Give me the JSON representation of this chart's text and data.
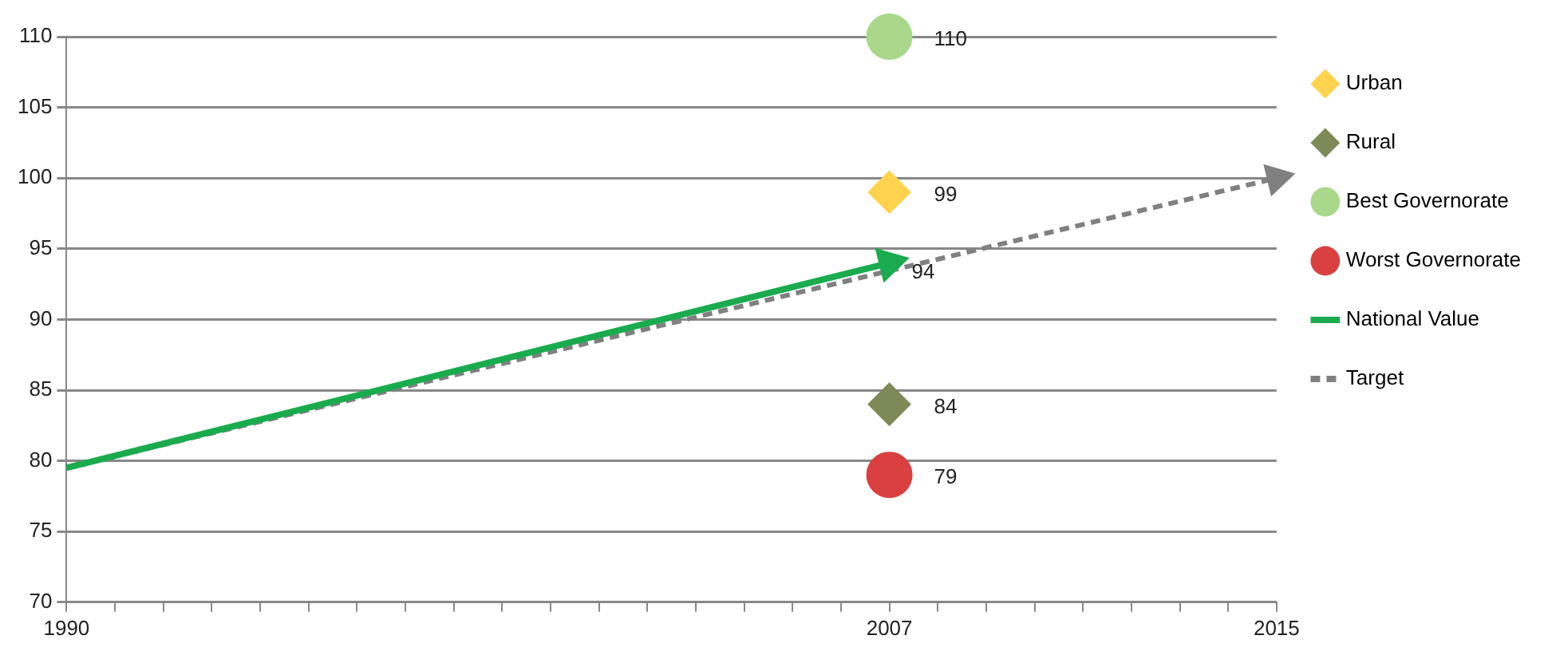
{
  "chart_data": {
    "type": "scatter",
    "legend": "right",
    "grid": "y",
    "xlim": [
      1990,
      2015
    ],
    "xticks": [
      {
        "value": 1990,
        "label": "1990"
      },
      {
        "value": 1991,
        "label": null
      },
      {
        "value": 1992,
        "label": null
      },
      {
        "value": 1993,
        "label": null
      },
      {
        "value": 1994,
        "label": null
      },
      {
        "value": 1995,
        "label": null
      },
      {
        "value": 1996,
        "label": null
      },
      {
        "value": 1997,
        "label": null
      },
      {
        "value": 1998,
        "label": null
      },
      {
        "value": 1999,
        "label": null
      },
      {
        "value": 2000,
        "label": null
      },
      {
        "value": 2001,
        "label": null
      },
      {
        "value": 2002,
        "label": null
      },
      {
        "value": 2003,
        "label": null
      },
      {
        "value": 2004,
        "label": null
      },
      {
        "value": 2005,
        "label": null
      },
      {
        "value": 2006,
        "label": null
      },
      {
        "value": 2007,
        "label": "2007"
      },
      {
        "value": 2008,
        "label": null
      },
      {
        "value": 2009,
        "label": null
      },
      {
        "value": 2010,
        "label": null
      },
      {
        "value": 2011,
        "label": null
      },
      {
        "value": 2012,
        "label": null
      },
      {
        "value": 2013,
        "label": null
      },
      {
        "value": 2014,
        "label": null
      },
      {
        "value": 2015,
        "label": "2015"
      }
    ],
    "ylim": [
      70,
      110
    ],
    "yticks": [
      70,
      75,
      80,
      85,
      90,
      95,
      100,
      105,
      110
    ],
    "series": [
      {
        "name": "Urban",
        "marker": "diamond",
        "color": "#ffd34d",
        "x": [
          2007
        ],
        "values": [
          99
        ],
        "value_labels": [
          "99"
        ]
      },
      {
        "name": "Rural",
        "marker": "diamond",
        "color": "#7b8a57",
        "x": [
          2007
        ],
        "values": [
          84
        ],
        "value_labels": [
          "84"
        ]
      },
      {
        "name": "Best Governorate",
        "marker": "circle",
        "color": "#a9d88a",
        "x": [
          2007
        ],
        "values": [
          110
        ],
        "value_labels": [
          "110"
        ]
      },
      {
        "name": "Worst Governorate",
        "marker": "circle",
        "color": "#d9403f",
        "x": [
          2007
        ],
        "values": [
          79
        ],
        "value_labels": [
          "79"
        ]
      },
      {
        "name": "National Value",
        "type": "line",
        "line_style": "solid",
        "color": "#1aab4f",
        "x": [
          1990,
          2007
        ],
        "values": [
          79.5,
          94
        ],
        "value_labels": [
          null,
          "94"
        ]
      },
      {
        "name": "Target",
        "type": "line",
        "line_style": "dashed",
        "color": "#808080",
        "x": [
          1990,
          2015
        ],
        "values": [
          79.5,
          100
        ]
      }
    ]
  }
}
